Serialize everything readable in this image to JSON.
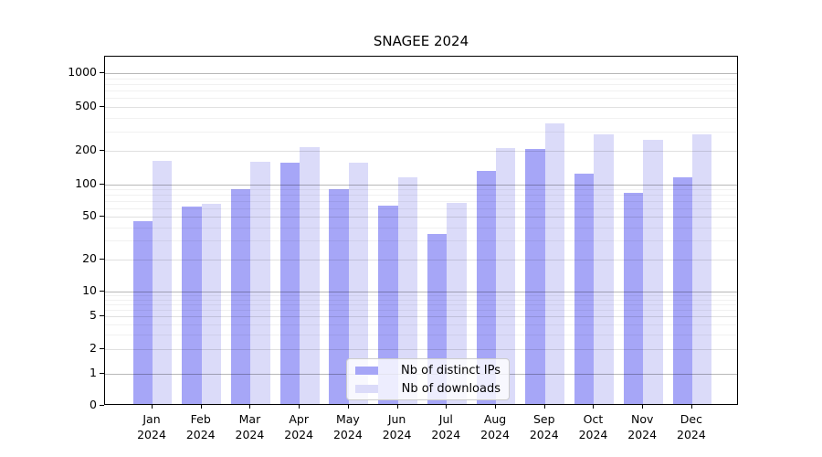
{
  "title": "SNAGEE 2024",
  "chart_data": {
    "type": "bar",
    "title": "SNAGEE 2024",
    "categories": [
      "Jan 2024",
      "Feb 2024",
      "Mar 2024",
      "Apr 2024",
      "May 2024",
      "Jun 2024",
      "Jul 2024",
      "Aug 2024",
      "Sep 2024",
      "Oct 2024",
      "Nov 2024",
      "Dec 2024"
    ],
    "series": [
      {
        "name": "Nb of distinct IPs",
        "color": "#a6a6f7",
        "values": [
          44,
          60,
          87,
          152,
          87,
          61,
          33,
          128,
          200,
          120,
          80,
          113
        ]
      },
      {
        "name": "Nb of downloads",
        "color": "#dbdbf9",
        "values": [
          158,
          64,
          155,
          208,
          152,
          113,
          65,
          205,
          340,
          270,
          245,
          270
        ]
      }
    ],
    "xlabel": "",
    "ylabel": "",
    "yscale": "symlog",
    "ylim": [
      0,
      1400
    ],
    "yticks": [
      0,
      1,
      2,
      5,
      10,
      20,
      50,
      100,
      200,
      500,
      1000
    ],
    "grid": "horizontal, major and minor",
    "legend_position": "lower center"
  },
  "colors": {
    "bar_dark": "#a6a6f7",
    "bar_light": "#dbdbf9",
    "grid_major": "#b8b8b8",
    "grid_mid": "#e2e2e2",
    "grid_minor": "#f1f1f1",
    "axis": "#000000",
    "background": "#ffffff"
  }
}
